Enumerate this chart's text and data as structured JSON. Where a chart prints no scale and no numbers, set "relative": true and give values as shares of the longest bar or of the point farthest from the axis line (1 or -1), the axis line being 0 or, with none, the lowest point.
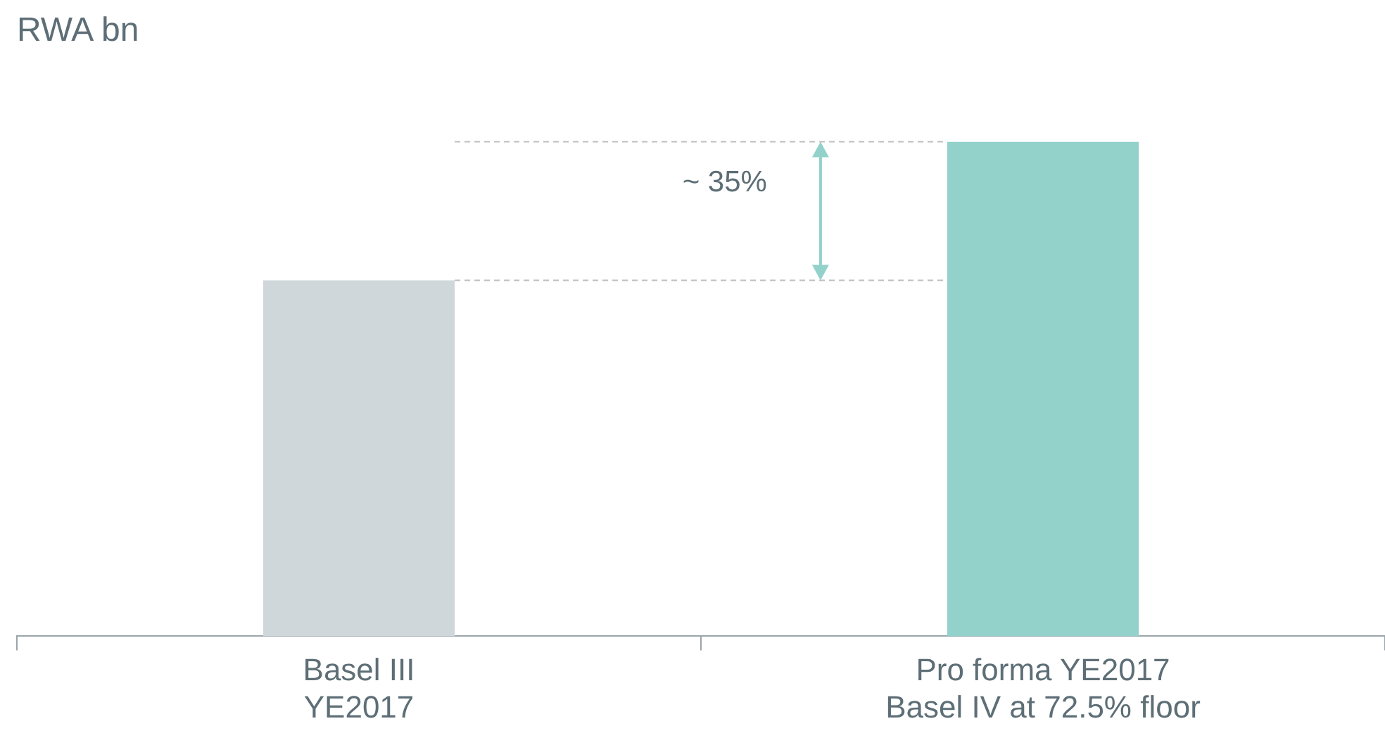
{
  "chart_data": {
    "type": "bar",
    "title": "RWA bn",
    "relative": true,
    "categories": [
      "Basel III\nYE2017",
      "Pro forma YE2017\nBasel IV at 72.5% floor"
    ],
    "values": [
      0.72,
      1
    ],
    "colors": [
      "#cfd7da",
      "#93d1cb"
    ],
    "ref_lines": [
      {
        "axis": "y",
        "value": 0.72,
        "line_style": "dashed",
        "color": "#bdbdbd"
      },
      {
        "axis": "y",
        "value": 1,
        "line_style": "dashed",
        "color": "#bdbdbd"
      }
    ],
    "annotations": [
      "~ 35%"
    ],
    "grid": false,
    "legend": false
  }
}
